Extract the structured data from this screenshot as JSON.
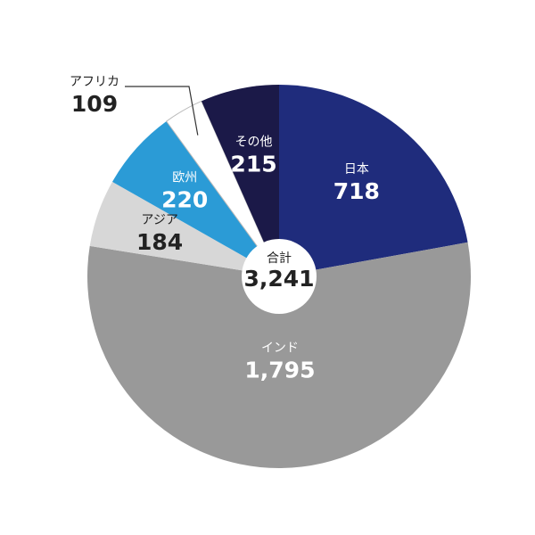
{
  "chart_data": {
    "type": "pie",
    "categories": [
      "日本",
      "インド",
      "アジア",
      "欧州",
      "アフリカ",
      "その他"
    ],
    "values": [
      718,
      1795,
      184,
      220,
      109,
      215
    ],
    "value_labels": [
      "718",
      "1,795",
      "184",
      "220",
      "109",
      "215"
    ],
    "colors": [
      "#1f2c7c",
      "#999999",
      "#d7d7d7",
      "#2b9bd6",
      "#ffffff",
      "#1b1948"
    ],
    "total_label": "合計",
    "total": {
      "value": 3241,
      "label": "3,241"
    }
  }
}
